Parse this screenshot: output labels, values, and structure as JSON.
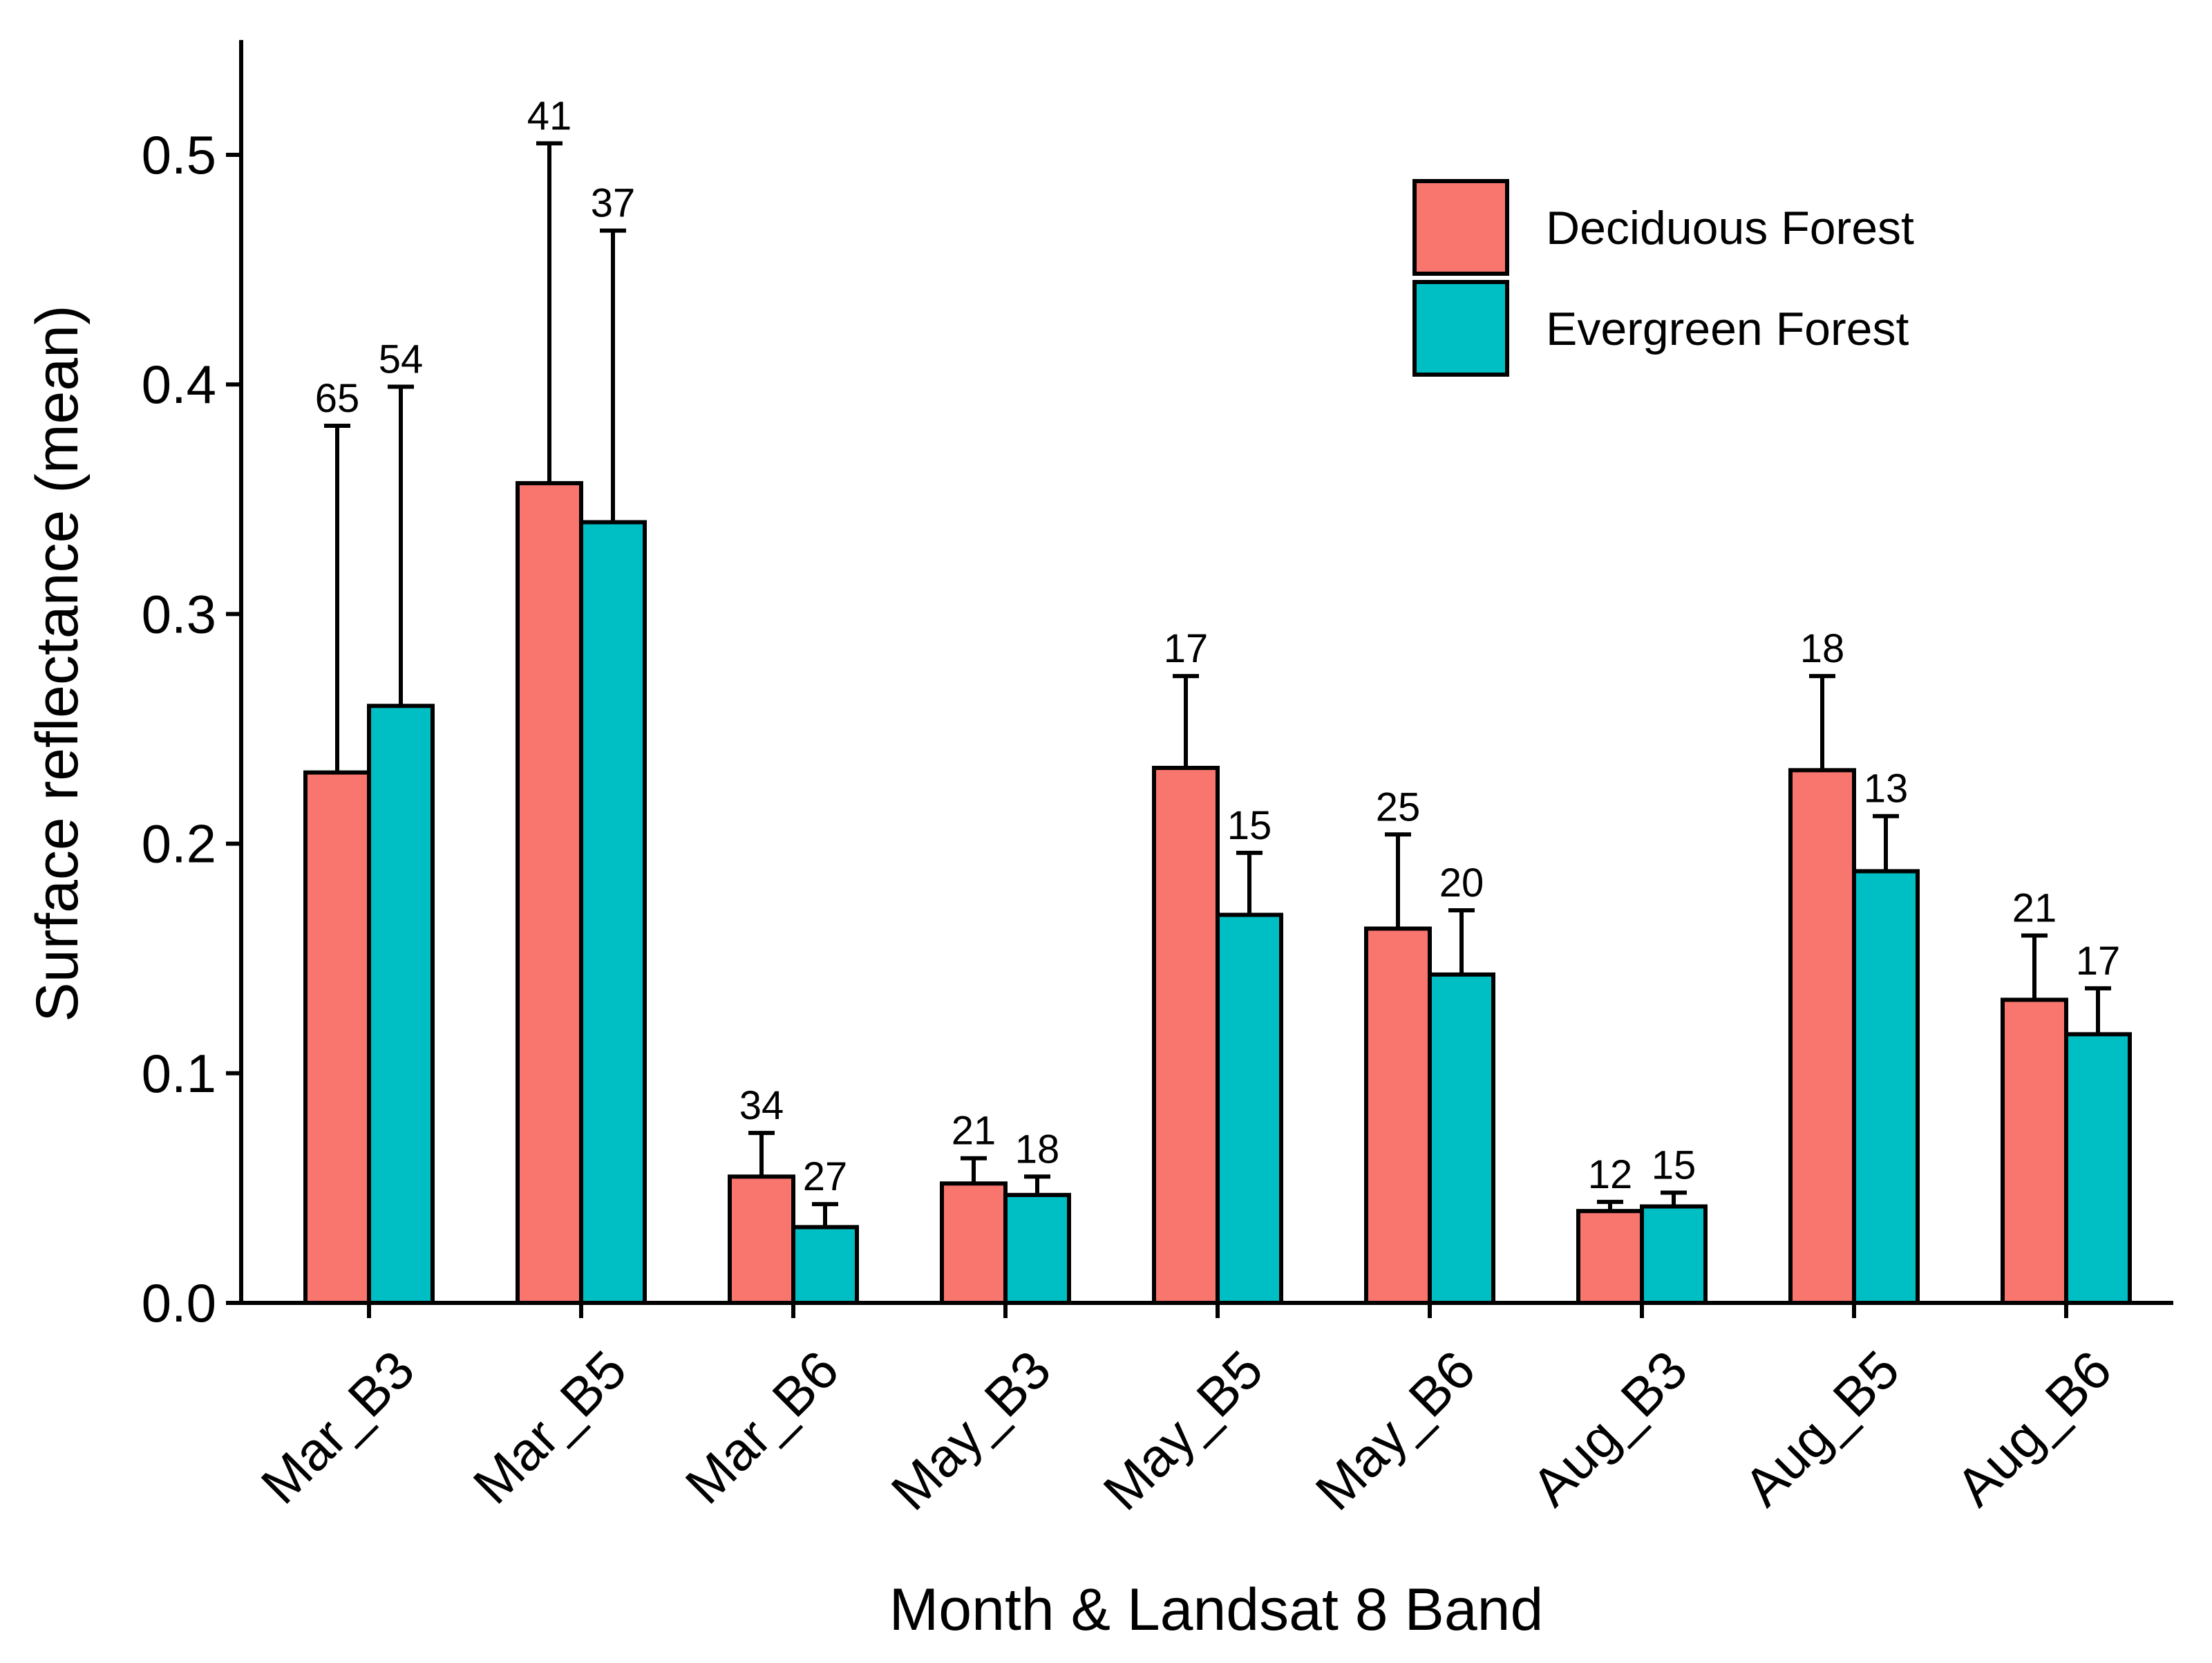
{
  "chart_data": {
    "type": "bar",
    "title": "",
    "xlabel": "Month & Landsat 8 Band",
    "ylabel": "Surface reflectance (mean)",
    "ylim": [
      0,
      0.55
    ],
    "yticks": [
      0.0,
      0.1,
      0.2,
      0.3,
      0.4,
      0.5
    ],
    "ytick_labels": [
      "0.0",
      "0.1",
      "0.2",
      "0.3",
      "0.4",
      "0.5"
    ],
    "grid": false,
    "legend_position": "top-right",
    "categories": [
      "Mar_B3",
      "Mar_B5",
      "Mar_B6",
      "May_B3",
      "May_B5",
      "May_B6",
      "Aug_B3",
      "Aug_B5",
      "Aug_B6"
    ],
    "series": [
      {
        "name": "Deciduous Forest",
        "color": "#F8766D",
        "values": [
          0.231,
          0.357,
          0.055,
          0.052,
          0.233,
          0.163,
          0.04,
          0.232,
          0.132
        ],
        "error_upper": [
          0.382,
          0.505,
          0.074,
          0.063,
          0.273,
          0.204,
          0.044,
          0.273,
          0.16
        ],
        "n": [
          "65",
          "41",
          "34",
          "21",
          "17",
          "25",
          "12",
          "18",
          "21"
        ]
      },
      {
        "name": "Evergreen Forest",
        "color": "#00BFC4",
        "values": [
          0.26,
          0.34,
          0.033,
          0.047,
          0.169,
          0.143,
          0.042,
          0.188,
          0.117
        ],
        "error_upper": [
          0.399,
          0.467,
          0.043,
          0.055,
          0.196,
          0.171,
          0.048,
          0.212,
          0.137
        ],
        "n": [
          "54",
          "37",
          "27",
          "18",
          "15",
          "20",
          "15",
          "13",
          "17"
        ]
      }
    ]
  }
}
